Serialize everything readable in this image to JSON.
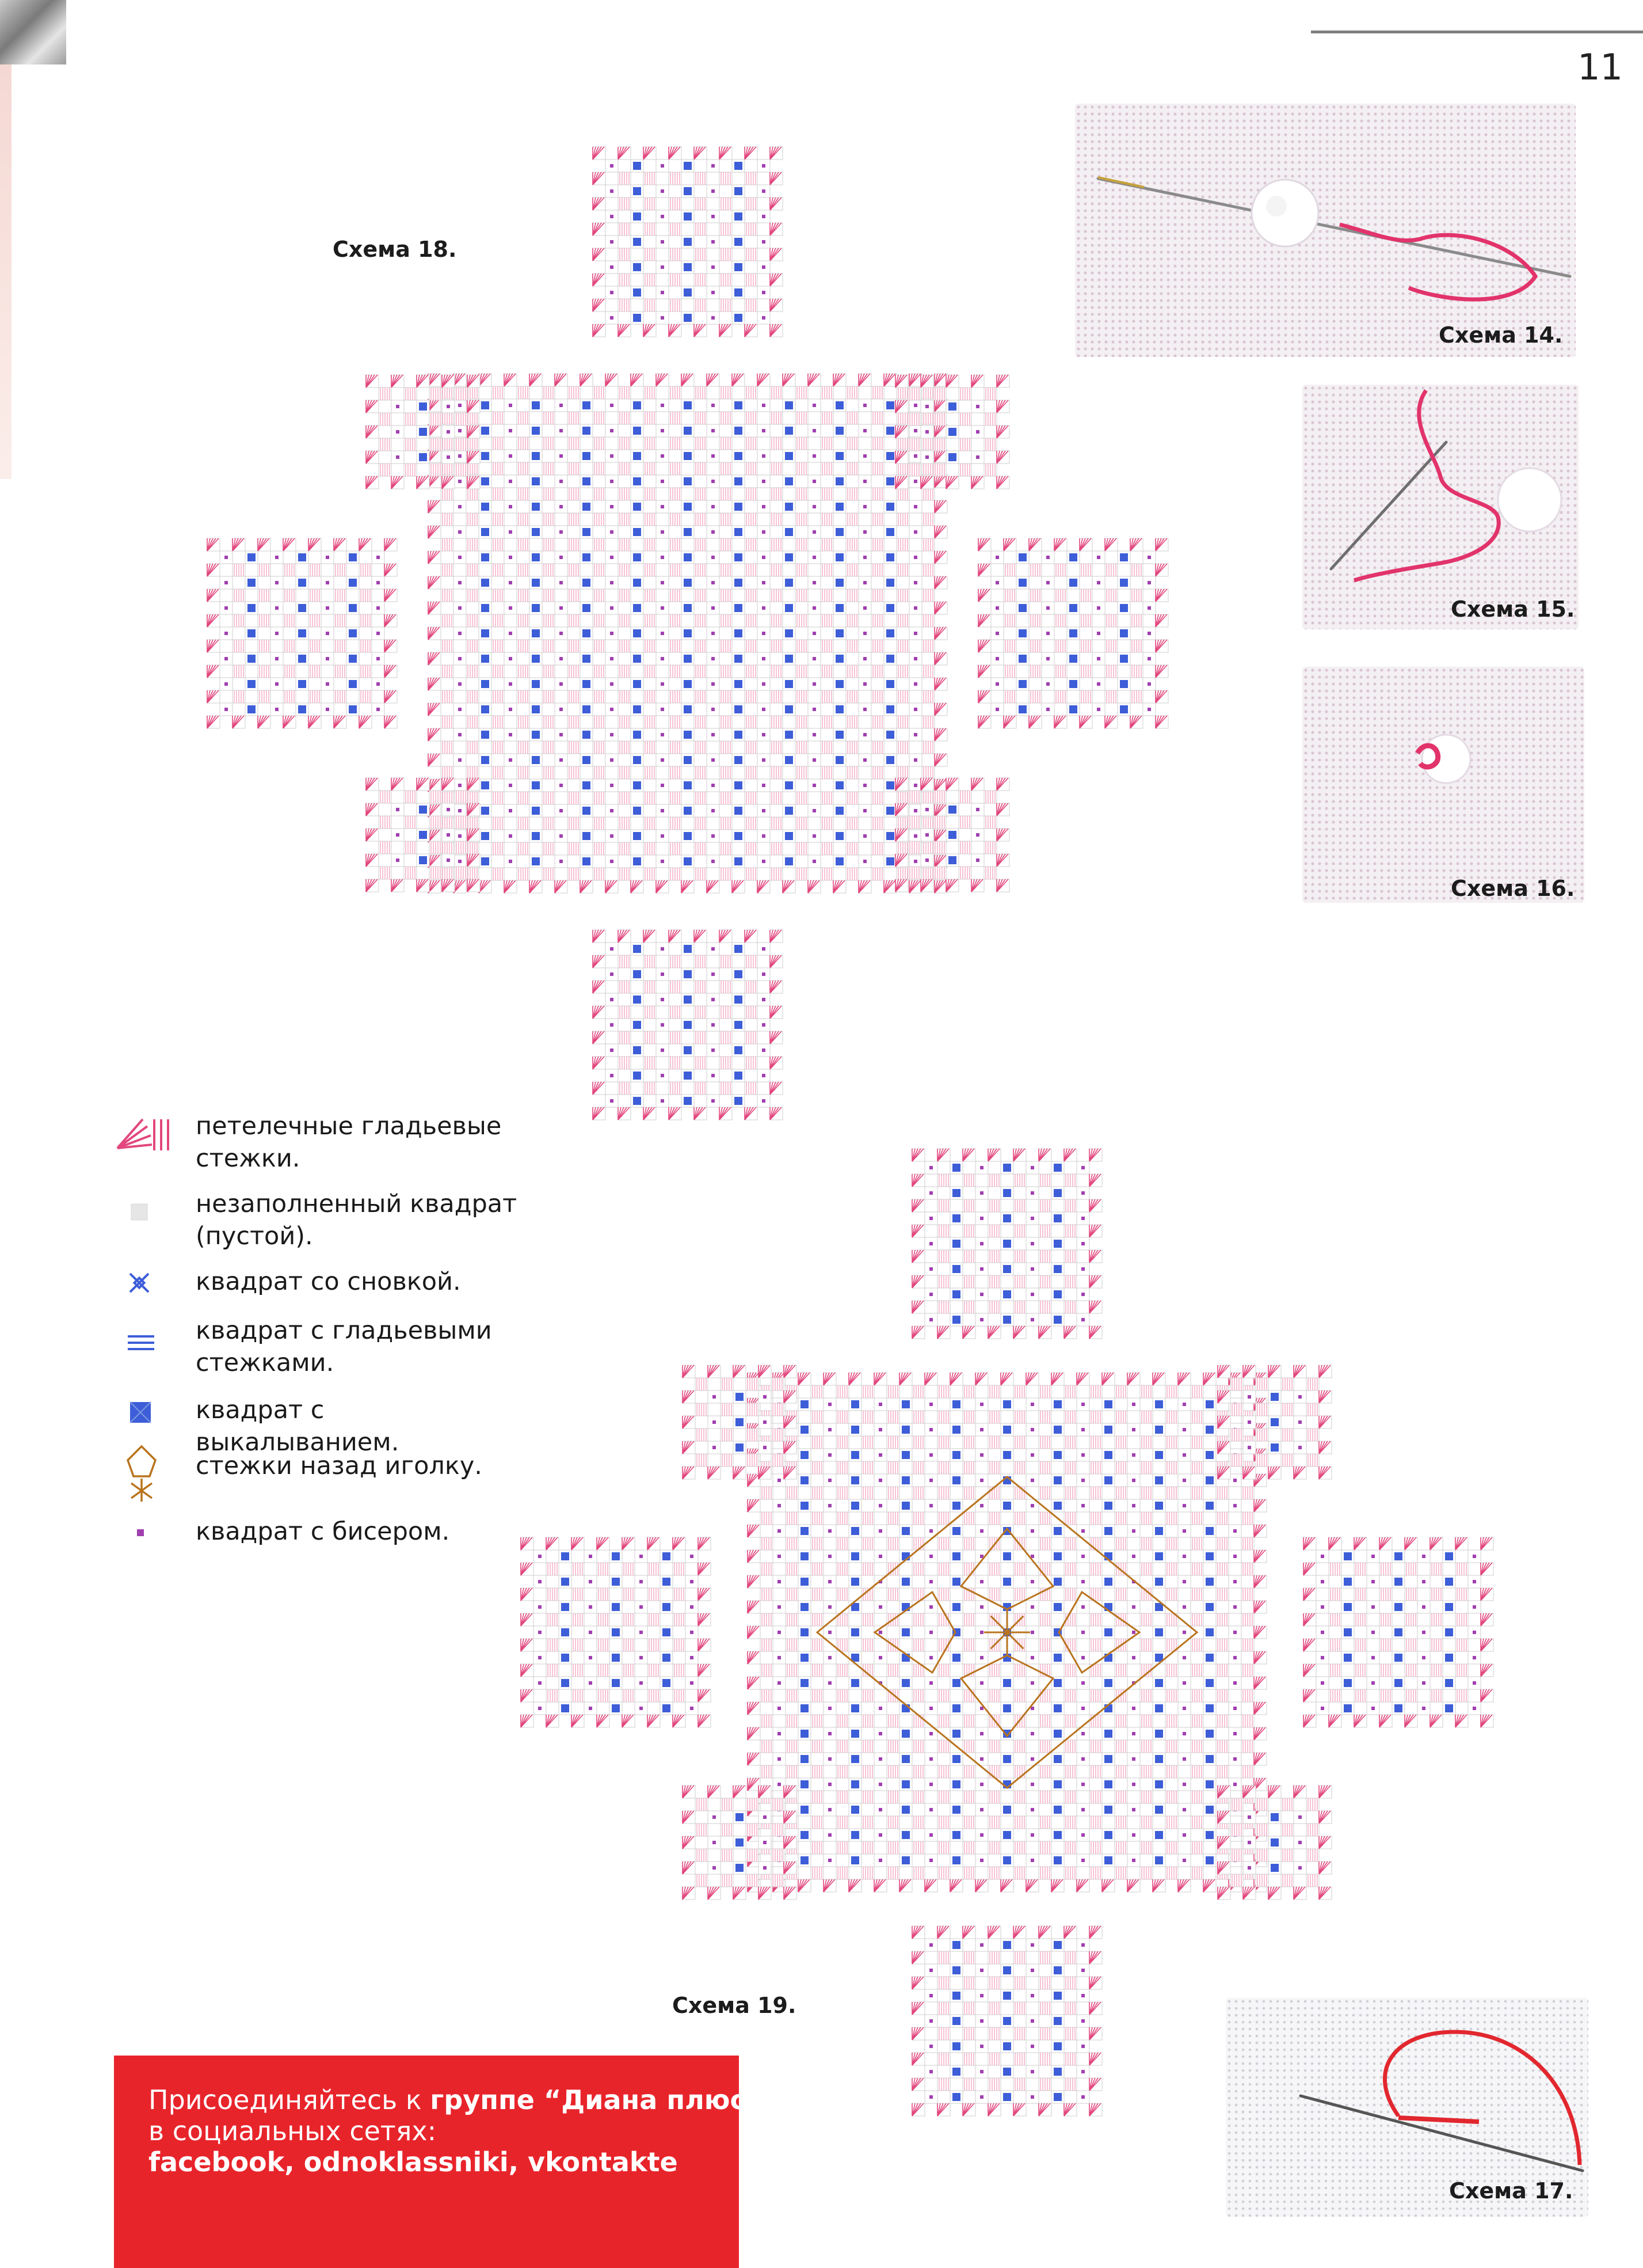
{
  "page": {
    "number": "11"
  },
  "schemes": {
    "s14": {
      "caption": "Схема 14."
    },
    "s15": {
      "caption": "Схема 15."
    },
    "s16": {
      "caption": "Схема 16."
    },
    "s17": {
      "caption": "Схема 17."
    },
    "s18": {
      "caption": "Схема 18."
    },
    "s19": {
      "caption": "Схема 19."
    }
  },
  "legend": {
    "items": [
      {
        "icon": "buttonhole-stitch-icon",
        "text": "петелечные гладьевые стежки."
      },
      {
        "icon": "empty-square-icon",
        "text": "незаполненный квадрат (пустой)."
      },
      {
        "icon": "woven-square-icon",
        "text": "квадрат со сновкой."
      },
      {
        "icon": "satin-stitch-square-icon",
        "text": "квадрат с гладьевыми стежками."
      },
      {
        "icon": "cutwork-square-icon",
        "text": "квадрат с выкалыванием."
      },
      {
        "icon": "backstitch-icon",
        "text": "стежки назад иголку."
      },
      {
        "icon": "bead-square-icon",
        "text": "квадрат с бисером."
      }
    ]
  },
  "banner": {
    "line1_prefix": "Присоединяйтесь к ",
    "line1_bold": "группе “Диана плюс”",
    "line2": "в социальных сетях:",
    "line3": "facebook, odnoklassniki, vkontakte"
  },
  "colors": {
    "pink": "#e2477e",
    "pink_light": "#f4aac3",
    "blue": "#3d5ed8",
    "blue_light": "#7d9be0",
    "bead": "#a040b0",
    "grid": "#cfcfcf",
    "backstitch": "#b9741e",
    "banner_red": "#e8242b"
  }
}
